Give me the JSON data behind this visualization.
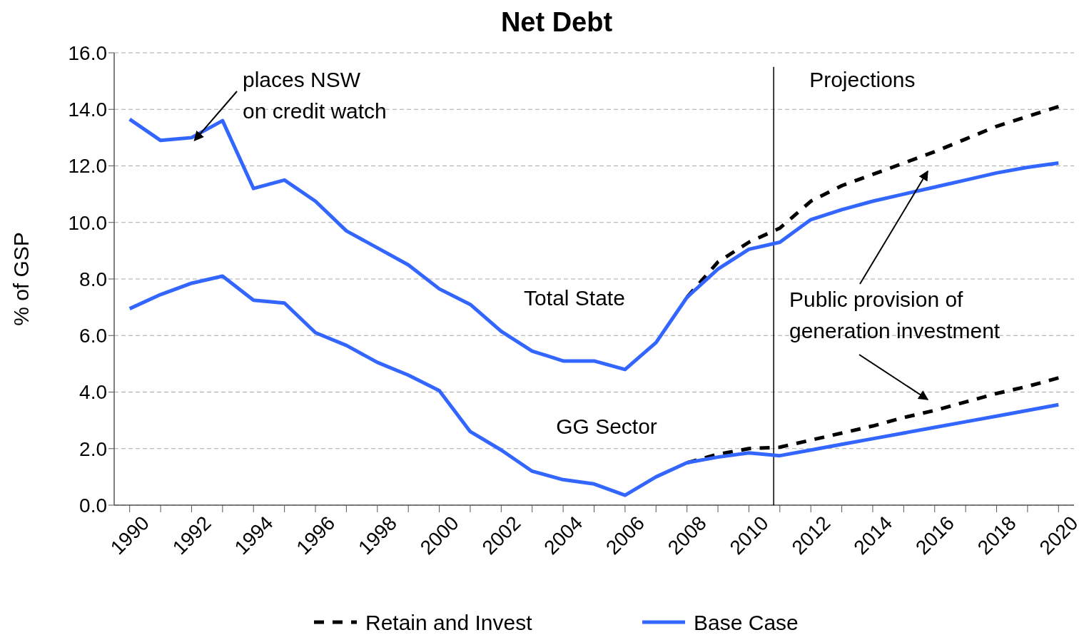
{
  "chart_data": {
    "type": "line",
    "title": "Net Debt",
    "ylabel": "% of GSP",
    "x": [
      1990,
      1991,
      1992,
      1993,
      1994,
      1995,
      1996,
      1997,
      1998,
      1999,
      2000,
      2001,
      2002,
      2003,
      2004,
      2005,
      2006,
      2007,
      2008,
      2009,
      2010,
      2011,
      2012,
      2013,
      2014,
      2015,
      2016,
      2017,
      2018,
      2019,
      2020
    ],
    "series": [
      {
        "name": "Retain and Invest",
        "color": "#000000",
        "line_style": "dashed",
        "values": [
          null,
          null,
          null,
          null,
          null,
          null,
          null,
          null,
          null,
          null,
          null,
          null,
          null,
          null,
          null,
          null,
          null,
          null,
          7.35,
          8.6,
          9.3,
          9.8,
          10.75,
          11.3,
          11.7,
          12.1,
          12.5,
          12.95,
          13.4,
          13.75,
          14.1
        ]
      },
      {
        "color": "#000000",
        "line_style": "dashed",
        "values": [
          null,
          null,
          null,
          null,
          null,
          null,
          null,
          null,
          null,
          null,
          null,
          null,
          null,
          null,
          null,
          null,
          null,
          null,
          1.5,
          1.8,
          2.0,
          2.05,
          2.3,
          2.55,
          2.8,
          3.1,
          3.35,
          3.65,
          3.95,
          4.2,
          4.5
        ]
      },
      {
        "name": "Base Case",
        "color": "#3366ff",
        "line_style": "solid",
        "values": [
          13.65,
          12.9,
          13.0,
          13.6,
          11.2,
          11.5,
          10.75,
          9.7,
          9.1,
          8.5,
          7.65,
          7.1,
          6.15,
          5.45,
          5.1,
          5.1,
          4.8,
          5.75,
          7.35,
          8.35,
          9.05,
          9.3,
          10.1,
          10.45,
          10.75,
          11.0,
          11.25,
          11.5,
          11.75,
          11.95,
          12.1
        ]
      },
      {
        "color": "#3366ff",
        "line_style": "solid",
        "values": [
          6.95,
          7.45,
          7.85,
          8.1,
          7.25,
          7.15,
          6.1,
          5.65,
          5.05,
          4.6,
          4.05,
          2.6,
          1.95,
          1.2,
          0.9,
          0.75,
          0.35,
          1.0,
          1.5,
          1.7,
          1.85,
          1.75,
          1.95,
          2.15,
          2.35,
          2.55,
          2.75,
          2.95,
          3.15,
          3.35,
          3.55
        ]
      }
    ],
    "xlim": [
      1989.5,
      2020.5
    ],
    "xticks": [
      1990,
      1992,
      1994,
      1996,
      1998,
      2000,
      2002,
      2004,
      2006,
      2008,
      2010,
      2012,
      2014,
      2016,
      2018,
      2020,
      {
        "value": 1991,
        "label": null
      },
      {
        "value": 1993,
        "label": null
      },
      {
        "value": 1995,
        "label": null
      },
      {
        "value": 1997,
        "label": null
      },
      {
        "value": 1999,
        "label": null
      },
      {
        "value": 2001,
        "label": null
      },
      {
        "value": 2003,
        "label": null
      },
      {
        "value": 2005,
        "label": null
      },
      {
        "value": 2007,
        "label": null
      },
      {
        "value": 2009,
        "label": null
      },
      {
        "value": 2011,
        "label": null
      },
      {
        "value": 2013,
        "label": null
      },
      {
        "value": 2015,
        "label": null
      },
      {
        "value": 2017,
        "label": null
      },
      {
        "value": 2019,
        "label": null
      }
    ],
    "ylim": [
      0,
      16
    ],
    "yticks": [
      {
        "value": 0,
        "label": "0.0"
      },
      {
        "value": 2,
        "label": "2.0"
      },
      {
        "value": 4,
        "label": "4.0"
      },
      {
        "value": 6,
        "label": "6.0"
      },
      {
        "value": 8,
        "label": "8.0"
      },
      {
        "value": 10,
        "label": "10.0"
      },
      {
        "value": 12,
        "label": "12.0"
      },
      {
        "value": 14,
        "label": "14.0"
      },
      {
        "value": 16,
        "label": "16.0"
      }
    ],
    "grid": "y",
    "legend": "bottom",
    "marker": "none",
    "ref_lines": [
      {
        "axis": "x",
        "value": 2010.8,
        "label": "Projections",
        "color": "#000000"
      }
    ],
    "annotations": [
      {
        "text": "places NSW on credit watch",
        "x": 1992,
        "y": 13.0
      },
      "Total State",
      "GG Sector",
      "Public provision of generation investment"
    ]
  }
}
